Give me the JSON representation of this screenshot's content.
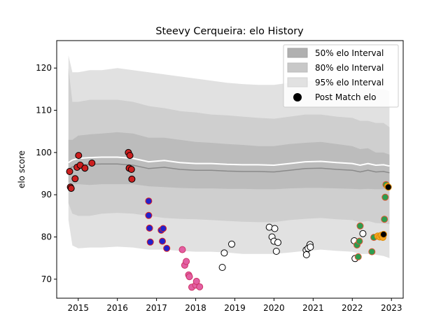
{
  "chart_data": {
    "type": "scatter",
    "title": "Steevy Cerqueira: elo History",
    "xlabel": "",
    "ylabel": "elo score",
    "xlim": [
      2014.45,
      2023.3
    ],
    "ylim": [
      65.5,
      126.5
    ],
    "x_ticks": [
      2015,
      2016,
      2017,
      2018,
      2019,
      2020,
      2021,
      2022,
      2023
    ],
    "x_tick_labels": [
      "2015",
      "2016",
      "2017",
      "2018",
      "2019",
      "2020",
      "2021",
      "2022",
      "2023"
    ],
    "y_ticks": [
      70,
      80,
      90,
      100,
      110,
      120
    ],
    "y_tick_labels": [
      "70",
      "80",
      "90",
      "100",
      "110",
      "120"
    ],
    "grid": false,
    "legend": {
      "position": "top-right",
      "entries": [
        {
          "label": "50% elo Interval",
          "color": "#b0b0b0"
        },
        {
          "label": "80% elo Interval",
          "color": "#c8c8c8"
        },
        {
          "label": "95% elo Interval",
          "color": "#e1e1e1"
        },
        {
          "label": "Post Match elo",
          "color": "#000000"
        }
      ]
    },
    "band_x": [
      2014.75,
      2014.85,
      2015.0,
      2015.3,
      2015.6,
      2016.0,
      2016.4,
      2016.8,
      2017.2,
      2017.6,
      2018.0,
      2018.4,
      2018.8,
      2019.2,
      2019.6,
      2020.0,
      2020.4,
      2020.8,
      2021.2,
      2021.6,
      2022.0,
      2022.2,
      2022.4,
      2022.6,
      2022.8,
      2022.95
    ],
    "median": [
      96.0,
      96.6,
      97.0,
      97.2,
      97.3,
      97.3,
      97.0,
      96.2,
      96.5,
      96.0,
      95.8,
      95.8,
      95.6,
      95.5,
      95.5,
      95.4,
      95.8,
      96.2,
      96.3,
      96.0,
      95.8,
      95.4,
      95.8,
      95.4,
      95.5,
      95.2
    ],
    "series_50": {
      "lower": [
        93.0,
        92.5,
        92.5,
        92.3,
        92.5,
        92.5,
        92.5,
        92.0,
        91.8,
        91.6,
        91.5,
        91.5,
        91.4,
        91.4,
        91.3,
        91.3,
        91.5,
        91.6,
        91.6,
        91.5,
        91.4,
        91.3,
        91.4,
        91.3,
        91.3,
        91.2
      ],
      "upper": [
        103.0,
        103.0,
        104.0,
        104.3,
        104.5,
        104.8,
        104.5,
        103.5,
        103.5,
        103.0,
        102.5,
        102.3,
        102.0,
        101.8,
        101.5,
        101.5,
        102.0,
        102.3,
        102.5,
        102.0,
        101.5,
        100.8,
        101.0,
        100.0,
        100.0,
        99.5
      ]
    },
    "series_80": {
      "lower": [
        88.0,
        85.5,
        85.0,
        85.0,
        85.5,
        85.7,
        85.5,
        85.0,
        84.5,
        84.3,
        84.2,
        84.0,
        83.8,
        83.6,
        83.5,
        83.5,
        84.0,
        84.3,
        84.5,
        84.2,
        84.0,
        83.5,
        83.8,
        83.3,
        83.2,
        83.0
      ],
      "upper": [
        120.0,
        112.0,
        112.0,
        112.5,
        112.5,
        112.5,
        112.0,
        111.0,
        110.5,
        109.8,
        109.5,
        109.0,
        108.8,
        108.5,
        108.2,
        108.0,
        108.5,
        109.0,
        109.0,
        108.5,
        108.2,
        107.5,
        107.5,
        107.0,
        107.0,
        106.0
      ]
    },
    "series_95": {
      "lower": [
        84.0,
        78.0,
        77.3,
        77.5,
        77.5,
        77.7,
        77.5,
        77.0,
        77.0,
        76.7,
        76.5,
        76.5,
        76.3,
        76.0,
        76.0,
        76.0,
        76.3,
        76.7,
        77.0,
        76.7,
        76.5,
        76.0,
        76.0,
        75.8,
        75.5,
        75.0
      ],
      "upper": [
        123.0,
        119.0,
        119.0,
        119.5,
        119.5,
        120.0,
        119.5,
        119.0,
        118.5,
        118.0,
        117.5,
        117.0,
        116.5,
        116.2,
        116.0,
        116.0,
        116.5,
        117.0,
        117.0,
        116.5,
        116.0,
        115.5,
        115.5,
        115.0,
        115.0,
        114.5
      ]
    },
    "points": [
      {
        "x": 2014.78,
        "y": 95.5,
        "face": "#cc1f1f",
        "edge": "#000000"
      },
      {
        "x": 2014.8,
        "y": 91.8,
        "face": "#cc1f1f",
        "edge": "#000000"
      },
      {
        "x": 2014.82,
        "y": 91.5,
        "face": "#cc1f1f",
        "edge": "#000000"
      },
      {
        "x": 2014.92,
        "y": 93.8,
        "face": "#cc1f1f",
        "edge": "#000000"
      },
      {
        "x": 2014.97,
        "y": 96.5,
        "face": "#cc1f1f",
        "edge": "#000000"
      },
      {
        "x": 2015.01,
        "y": 99.3,
        "face": "#cc1f1f",
        "edge": "#000000"
      },
      {
        "x": 2015.05,
        "y": 97.0,
        "face": "#cc1f1f",
        "edge": "#000000"
      },
      {
        "x": 2015.17,
        "y": 96.3,
        "face": "#cc1f1f",
        "edge": "#000000"
      },
      {
        "x": 2015.35,
        "y": 97.5,
        "face": "#cc1f1f",
        "edge": "#000000"
      },
      {
        "x": 2016.28,
        "y": 100.0,
        "face": "#cc1f1f",
        "edge": "#000000"
      },
      {
        "x": 2016.32,
        "y": 99.3,
        "face": "#cc1f1f",
        "edge": "#000000"
      },
      {
        "x": 2016.3,
        "y": 96.3,
        "face": "#cc1f1f",
        "edge": "#000000"
      },
      {
        "x": 2016.36,
        "y": 96.0,
        "face": "#cc1f1f",
        "edge": "#000000"
      },
      {
        "x": 2016.37,
        "y": 93.7,
        "face": "#cc1f1f",
        "edge": "#000000"
      },
      {
        "x": 2016.8,
        "y": 88.5,
        "face": "#2222cc",
        "edge": "#dd2222"
      },
      {
        "x": 2016.8,
        "y": 85.1,
        "face": "#2222cc",
        "edge": "#dd2222"
      },
      {
        "x": 2016.82,
        "y": 82.1,
        "face": "#2222cc",
        "edge": "#dd2222"
      },
      {
        "x": 2016.84,
        "y": 78.8,
        "face": "#2222cc",
        "edge": "#dd2222"
      },
      {
        "x": 2017.12,
        "y": 81.6,
        "face": "#2222cc",
        "edge": "#dd2222"
      },
      {
        "x": 2017.17,
        "y": 82.0,
        "face": "#2222cc",
        "edge": "#dd2222"
      },
      {
        "x": 2017.15,
        "y": 79.0,
        "face": "#2222cc",
        "edge": "#dd2222"
      },
      {
        "x": 2017.26,
        "y": 77.3,
        "face": "#2222cc",
        "edge": "#dd2222"
      },
      {
        "x": 2017.66,
        "y": 77.0,
        "face": "#e35fa3",
        "edge": "#cc3366"
      },
      {
        "x": 2017.72,
        "y": 73.3,
        "face": "#e35fa3",
        "edge": "#cc3366"
      },
      {
        "x": 2017.76,
        "y": 74.2,
        "face": "#e35fa3",
        "edge": "#cc3366"
      },
      {
        "x": 2017.82,
        "y": 71.0,
        "face": "#e35fa3",
        "edge": "#cc3366"
      },
      {
        "x": 2017.84,
        "y": 70.6,
        "face": "#e35fa3",
        "edge": "#cc3366"
      },
      {
        "x": 2017.9,
        "y": 68.1,
        "face": "#e35fa3",
        "edge": "#cc3366"
      },
      {
        "x": 2018.0,
        "y": 68.6,
        "face": "#e35fa3",
        "edge": "#cc3366"
      },
      {
        "x": 2018.02,
        "y": 69.5,
        "face": "#e35fa3",
        "edge": "#cc3366"
      },
      {
        "x": 2018.1,
        "y": 68.2,
        "face": "#e35fa3",
        "edge": "#cc3366"
      },
      {
        "x": 2018.68,
        "y": 72.8,
        "face": "#ffffff",
        "edge": "#000000"
      },
      {
        "x": 2018.73,
        "y": 76.2,
        "face": "#ffffff",
        "edge": "#000000"
      },
      {
        "x": 2018.92,
        "y": 78.3,
        "face": "#ffffff",
        "edge": "#000000"
      },
      {
        "x": 2019.88,
        "y": 82.3,
        "face": "#ffffff",
        "edge": "#000000"
      },
      {
        "x": 2019.95,
        "y": 80.0,
        "face": "#ffffff",
        "edge": "#000000"
      },
      {
        "x": 2020.02,
        "y": 82.0,
        "face": "#ffffff",
        "edge": "#000000"
      },
      {
        "x": 2020.0,
        "y": 79.0,
        "face": "#ffffff",
        "edge": "#000000"
      },
      {
        "x": 2020.06,
        "y": 76.6,
        "face": "#ffffff",
        "edge": "#000000"
      },
      {
        "x": 2020.1,
        "y": 78.7,
        "face": "#ffffff",
        "edge": "#000000"
      },
      {
        "x": 2020.82,
        "y": 76.9,
        "face": "#ffffff",
        "edge": "#000000"
      },
      {
        "x": 2020.83,
        "y": 75.8,
        "face": "#ffffff",
        "edge": "#000000"
      },
      {
        "x": 2020.87,
        "y": 77.3,
        "face": "#ffffff",
        "edge": "#000000"
      },
      {
        "x": 2020.92,
        "y": 78.2,
        "face": "#ffffff",
        "edge": "#000000"
      },
      {
        "x": 2020.93,
        "y": 77.6,
        "face": "#ffffff",
        "edge": "#000000"
      },
      {
        "x": 2022.05,
        "y": 79.1,
        "face": "#ffffff",
        "edge": "#000000"
      },
      {
        "x": 2022.07,
        "y": 74.9,
        "face": "#ffffff",
        "edge": "#000000"
      },
      {
        "x": 2022.15,
        "y": 75.3,
        "face": "#2e9c4f",
        "edge": "#dd5533"
      },
      {
        "x": 2022.12,
        "y": 78.1,
        "face": "#2e9c4f",
        "edge": "#dd5533"
      },
      {
        "x": 2022.2,
        "y": 82.6,
        "face": "#2e9c4f",
        "edge": "#dd5533"
      },
      {
        "x": 2022.18,
        "y": 79.0,
        "face": "#2e9c4f",
        "edge": "#dd5533"
      },
      {
        "x": 2022.27,
        "y": 80.8,
        "face": "#ffffff",
        "edge": "#000000"
      },
      {
        "x": 2022.5,
        "y": 76.5,
        "face": "#2e9c4f",
        "edge": "#dd5533"
      },
      {
        "x": 2022.55,
        "y": 79.9,
        "face": "#2e9c4f",
        "edge": "#dd5533"
      },
      {
        "x": 2022.65,
        "y": 80.2,
        "face": "#f5a623",
        "edge": "#e08a00"
      },
      {
        "x": 2022.7,
        "y": 80.0,
        "face": "#f5a623",
        "edge": "#e08a00"
      },
      {
        "x": 2022.74,
        "y": 80.4,
        "face": "#f5a623",
        "edge": "#e08a00"
      },
      {
        "x": 2022.78,
        "y": 79.9,
        "face": "#f5a623",
        "edge": "#e08a00"
      },
      {
        "x": 2022.8,
        "y": 80.6,
        "face": "#000000",
        "edge": "#e08a00"
      },
      {
        "x": 2022.82,
        "y": 84.2,
        "face": "#2e9c4f",
        "edge": "#dd5533"
      },
      {
        "x": 2022.84,
        "y": 89.4,
        "face": "#2e9c4f",
        "edge": "#dd5533"
      },
      {
        "x": 2022.86,
        "y": 92.4,
        "face": "#2e9c4f",
        "edge": "#dd5533"
      },
      {
        "x": 2022.9,
        "y": 92.0,
        "face": "#f5a623",
        "edge": "#e08a00"
      },
      {
        "x": 2022.92,
        "y": 91.8,
        "face": "#000000",
        "edge": "#e08a00"
      }
    ]
  }
}
